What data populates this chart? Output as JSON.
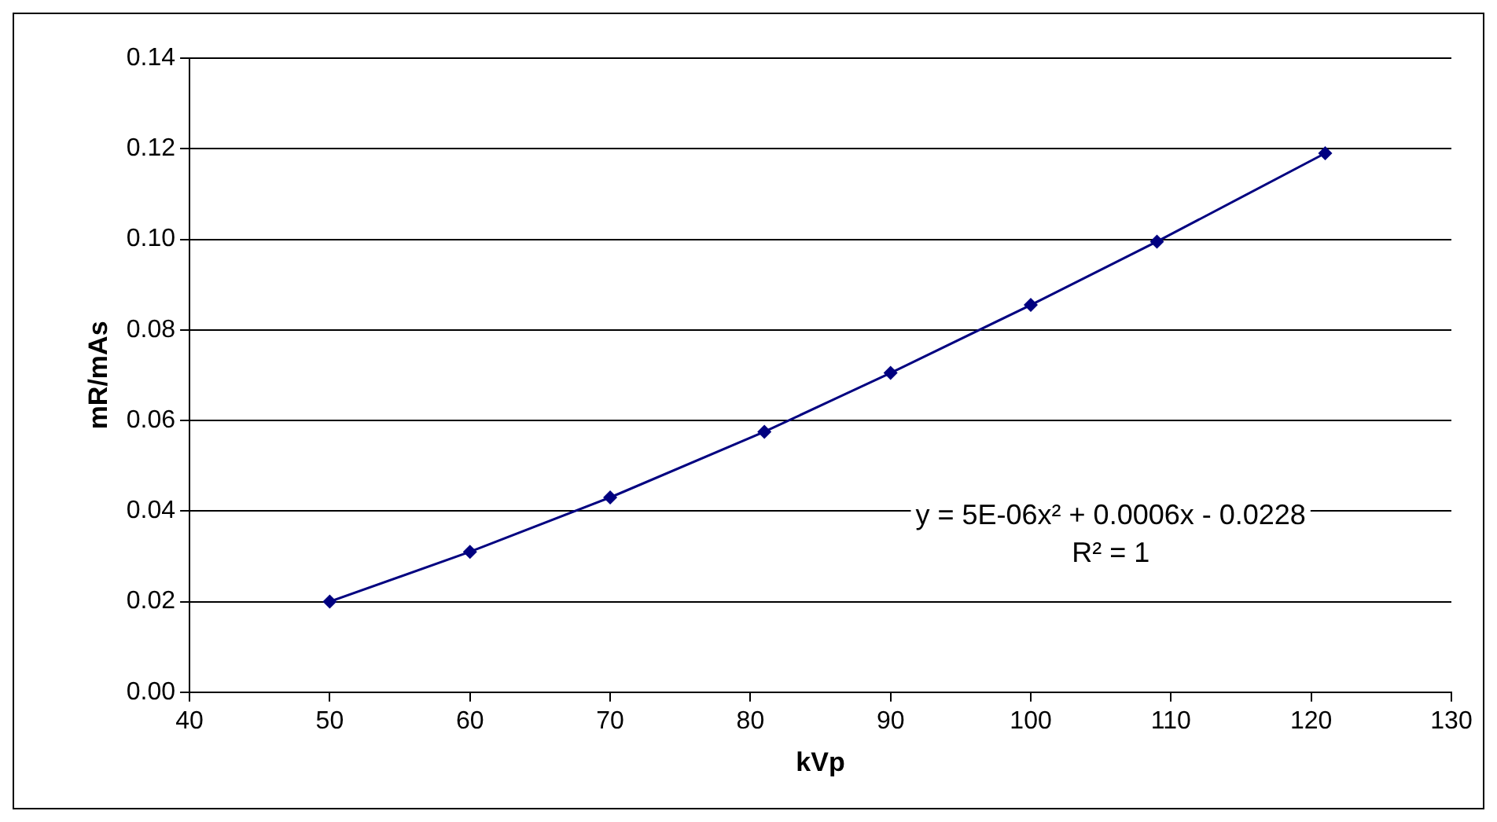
{
  "chart_data": {
    "type": "line",
    "xlabel": "kVp",
    "ylabel": "mR/mAs",
    "x": [
      50,
      60,
      70,
      81,
      90,
      100,
      109,
      121
    ],
    "series": [
      {
        "color": "#000080",
        "values": [
          0.02,
          0.031,
          0.043,
          0.0575,
          0.0705,
          0.0855,
          0.0995,
          0.119
        ]
      }
    ],
    "xlim": [
      40,
      130
    ],
    "xticks": [
      40,
      50,
      60,
      70,
      80,
      90,
      100,
      110,
      120,
      130
    ],
    "ylim": [
      0,
      0.14
    ],
    "yticks": [
      {
        "value": 0,
        "label": "0.00"
      },
      {
        "value": 0.02,
        "label": "0.02"
      },
      {
        "value": 0.04,
        "label": "0.04"
      },
      {
        "value": 0.06,
        "label": "0.06"
      },
      {
        "value": 0.08,
        "label": "0.08"
      },
      {
        "value": 0.1,
        "label": "0.10"
      },
      {
        "value": 0.12,
        "label": "0.12"
      },
      {
        "value": 0.14,
        "label": "0.14"
      }
    ],
    "grid": "y",
    "legend": false,
    "marker": "diamond",
    "line_style": "solid",
    "annotations": [
      "y = 5E-06x² + 0.0006x - 0.0228",
      "R² = 1"
    ]
  }
}
